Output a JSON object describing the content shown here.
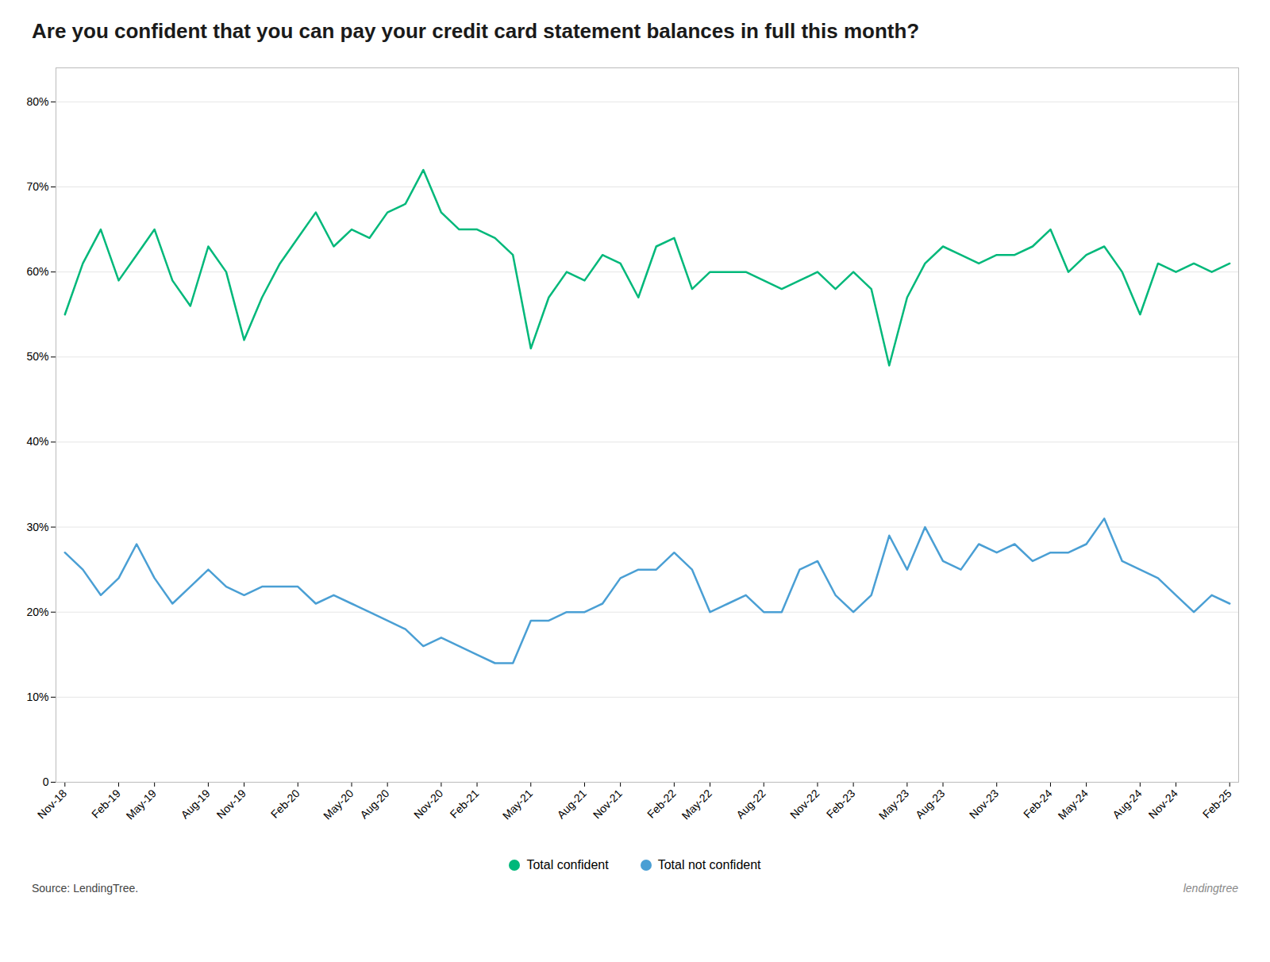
{
  "chart_data": {
    "type": "line",
    "title": "Are you confident that you can pay your credit card statement balances in full this month?",
    "caption": "Source: LendingTree.",
    "annotations": [
      "lendingtree"
    ],
    "categories": [
      "Nov-18",
      null,
      null,
      "Feb-19",
      null,
      "May-19",
      null,
      null,
      "Aug-19",
      null,
      "Nov-19",
      null,
      null,
      "Feb-20",
      null,
      null,
      "May-20",
      null,
      "Aug-20",
      null,
      null,
      "Nov-20",
      null,
      "Feb-21",
      null,
      null,
      "May-21",
      null,
      null,
      "Aug-21",
      null,
      "Nov-21",
      null,
      null,
      "Feb-22",
      null,
      "May-22",
      null,
      null,
      "Aug-22",
      null,
      null,
      "Nov-22",
      null,
      "Feb-23",
      null,
      null,
      "May-23",
      null,
      "Aug-23",
      null,
      null,
      "Nov-23",
      null,
      null,
      "Feb-24",
      null,
      "May-24",
      null,
      null,
      "Aug-24",
      null,
      "Nov-24",
      null,
      null,
      "Feb-25"
    ],
    "series": [
      {
        "name": "Total confident",
        "color": "#00b87a",
        "values": [
          55,
          61,
          65,
          59,
          62,
          65,
          59,
          56,
          63,
          60,
          52,
          57,
          61,
          64,
          67,
          63,
          65,
          64,
          67,
          68,
          72,
          67,
          65,
          65,
          64,
          62,
          51,
          57,
          60,
          59,
          62,
          61,
          57,
          63,
          64,
          58,
          60,
          60,
          60,
          59,
          58,
          59,
          60,
          58,
          60,
          58,
          49,
          57,
          61,
          63,
          62,
          61,
          62,
          62,
          63,
          65,
          60,
          62,
          63,
          60,
          55,
          61,
          60,
          61,
          60,
          61
        ]
      },
      {
        "name": "Total not confident",
        "color": "#4a9fd4",
        "values": [
          27,
          25,
          22,
          24,
          28,
          24,
          21,
          23,
          25,
          23,
          22,
          23,
          23,
          23,
          21,
          22,
          21,
          20,
          19,
          18,
          16,
          17,
          16,
          15,
          14,
          14,
          19,
          19,
          20,
          20,
          21,
          24,
          25,
          25,
          27,
          25,
          20,
          21,
          22,
          20,
          20,
          25,
          26,
          22,
          20,
          22,
          29,
          25,
          30,
          26,
          25,
          28,
          27,
          28,
          26,
          27,
          27,
          28,
          31,
          26,
          25,
          24,
          22,
          20,
          22,
          21
        ]
      }
    ],
    "ylim": [
      0,
      84
    ],
    "yticks": [
      0,
      {
        "value": 10,
        "label": "10%"
      },
      {
        "value": 20,
        "label": "20%"
      },
      {
        "value": 30,
        "label": "30%"
      },
      {
        "value": 40,
        "label": "40%"
      },
      {
        "value": 50,
        "label": "50%"
      },
      {
        "value": 60,
        "label": "60%"
      },
      {
        "value": 70,
        "label": "70%"
      },
      {
        "value": 80,
        "label": "80%"
      }
    ],
    "grid": true,
    "legend": "bottom"
  }
}
